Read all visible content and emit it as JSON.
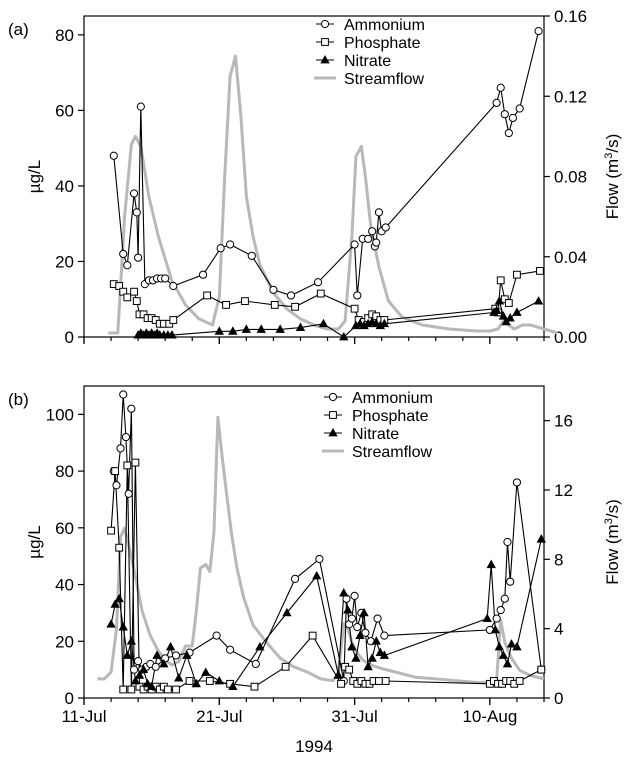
{
  "colors": {
    "ammonium": "#000000",
    "phosphate": "#000000",
    "nitrate": "#000000",
    "streamflow": "#b8b8b8"
  },
  "shared_x": {
    "ticks": [
      {
        "day": 11,
        "label": "11-Jul"
      },
      {
        "day": 21,
        "label": "21-Jul"
      },
      {
        "day": 31,
        "label": "31-Jul"
      },
      {
        "day": 41,
        "label": "10-Aug"
      }
    ],
    "xlabel": "1994",
    "xlim_note": "day-of-July axis"
  },
  "chart_data": [
    {
      "type": "line",
      "panel_label": "(a)",
      "xlim": [
        11,
        45
      ],
      "ylim": [
        0,
        85
      ],
      "yticks": [
        0,
        20,
        40,
        60,
        80
      ],
      "ylabel": "µg/L",
      "y2lim": [
        0,
        0.16
      ],
      "y2ticks": [
        "0.00",
        "0.04",
        "0.08",
        "0.12",
        "0.16"
      ],
      "y2label_base": "Flow (m",
      "y2label_sup": "3",
      "y2label_end": "/s)",
      "legend": [
        "Ammonium",
        "Phosphate",
        "Nitrate",
        "Streamflow"
      ],
      "series": [
        {
          "name": "Ammonium",
          "marker": "circle",
          "x": [
            13.2,
            13.9,
            14.2,
            14.7,
            14.9,
            15.0,
            15.2,
            15.5,
            15.8,
            16.1,
            16.4,
            16.7,
            17.0,
            17.6,
            19.8,
            21.1,
            21.8,
            23.4,
            25.0,
            26.3,
            28.3,
            31.0,
            31.2,
            31.6,
            32.0,
            32.3,
            32.5,
            32.6,
            32.8,
            33.0,
            33.3,
            41.5,
            41.8,
            42.1,
            42.4,
            42.7,
            43.2,
            44.6
          ],
          "y": [
            48,
            22,
            19,
            38,
            33,
            21,
            61,
            14,
            15,
            15,
            15.5,
            15.5,
            15.5,
            13.5,
            16.5,
            23.5,
            24.5,
            21.5,
            12.5,
            11,
            14.5,
            24.5,
            11,
            26,
            26,
            28,
            24,
            25,
            33,
            28,
            29,
            62,
            66,
            59,
            54,
            58,
            60.5,
            81
          ]
        },
        {
          "name": "Phosphate",
          "marker": "square",
          "x": [
            13.2,
            13.6,
            13.9,
            14.2,
            14.7,
            14.9,
            15.1,
            15.4,
            15.7,
            16.0,
            16.3,
            16.6,
            16.9,
            17.3,
            17.6,
            20.1,
            21.5,
            22.9,
            25.1,
            26.6,
            28.5,
            31.0,
            31.3,
            31.7,
            32.0,
            32.3,
            32.6,
            32.9,
            33.2,
            41.4,
            41.6,
            41.8,
            42.1,
            42.4,
            43.0,
            44.7
          ],
          "y": [
            14,
            13.5,
            12,
            10.5,
            12,
            9.5,
            6,
            6,
            5,
            5,
            4.5,
            3.5,
            3.5,
            3.5,
            4.5,
            11,
            8.5,
            9.5,
            8.5,
            8,
            11.5,
            7.5,
            4.5,
            4,
            5,
            6,
            5.5,
            4.5,
            4.5,
            7.5,
            6.5,
            15,
            10,
            9,
            16.5,
            17.5
          ]
        },
        {
          "name": "Nitrate",
          "marker": "triangle",
          "x": [
            15.0,
            15.2,
            15.4,
            15.6,
            15.8,
            16.0,
            16.2,
            16.4,
            16.6,
            16.9,
            17.2,
            17.5,
            21.0,
            22.0,
            23.0,
            24.1,
            25.5,
            27.0,
            28.7,
            30.2,
            31.1,
            31.4,
            31.7,
            32.0,
            32.3,
            32.6,
            32.9,
            33.2,
            41.3,
            41.5,
            41.7,
            42.0,
            42.2,
            42.5,
            43.0,
            44.6
          ],
          "y": [
            0.5,
            1,
            0.5,
            1,
            0.5,
            1,
            0.5,
            1,
            0.5,
            0.5,
            0.5,
            0.5,
            1.5,
            1.5,
            2,
            2,
            2,
            2.5,
            3.5,
            0,
            3,
            3.5,
            3,
            3.5,
            4,
            3.5,
            3,
            3.5,
            6.5,
            7,
            9.5,
            5.5,
            4,
            5,
            6.5,
            9.5
          ]
        },
        {
          "name": "Streamflow",
          "marker": "none",
          "axis": "y2",
          "x": [
            12.8,
            13.5,
            14.0,
            14.5,
            14.8,
            15.2,
            15.8,
            16.5,
            17.5,
            18.5,
            19.5,
            20.5,
            21.0,
            21.4,
            21.8,
            22.2,
            22.6,
            23.0,
            23.5,
            24.0,
            25.0,
            26.0,
            27.0,
            28.0,
            29.0,
            29.8,
            30.3,
            30.8,
            31.1,
            31.5,
            31.8,
            32.2,
            32.8,
            33.5,
            34.5,
            36.0,
            38.0,
            40.0,
            41.0,
            41.6,
            42.0,
            42.4,
            42.8,
            43.4,
            44.0,
            45.0,
            46.0
          ],
          "y": [
            0.002,
            0.002,
            0.06,
            0.096,
            0.1,
            0.095,
            0.07,
            0.05,
            0.028,
            0.016,
            0.009,
            0.006,
            0.02,
            0.08,
            0.13,
            0.14,
            0.11,
            0.07,
            0.05,
            0.036,
            0.022,
            0.014,
            0.009,
            0.006,
            0.004,
            0.004,
            0.008,
            0.05,
            0.09,
            0.095,
            0.08,
            0.055,
            0.035,
            0.018,
            0.01,
            0.006,
            0.004,
            0.003,
            0.003,
            0.004,
            0.008,
            0.006,
            0.004,
            0.006,
            0.006,
            0.004,
            0.002
          ]
        }
      ]
    },
    {
      "type": "line",
      "panel_label": "(b)",
      "xlim": [
        11,
        45
      ],
      "ylim": [
        0,
        110
      ],
      "yticks": [
        0,
        20,
        40,
        60,
        80,
        100
      ],
      "ylabel": "µg/L",
      "y2lim": [
        0,
        18
      ],
      "y2ticks": [
        "0",
        "4",
        "8",
        "12",
        "16"
      ],
      "y2label_base": "Flow (m",
      "y2label_sup": "3",
      "y2label_end": "/s)",
      "legend": [
        "Ammonium",
        "Phosphate",
        "Nitrate",
        "Streamflow"
      ],
      "series": [
        {
          "name": "Ammonium",
          "marker": "circle",
          "x": [
            13.2,
            13.4,
            13.7,
            13.9,
            14.1,
            14.3,
            14.5,
            14.7,
            15.0,
            15.3,
            15.6,
            15.9,
            16.3,
            17.0,
            17.8,
            18.8,
            20.8,
            21.8,
            23.7,
            26.6,
            28.4,
            30.2,
            30.4,
            30.6,
            30.8,
            31.0,
            31.2,
            31.5,
            31.8,
            32.2,
            32.7,
            33.2,
            41.0,
            41.5,
            41.8,
            42.1,
            42.3,
            42.5,
            43.0,
            44.8
          ],
          "y": [
            80,
            75,
            88,
            107,
            92,
            72,
            102,
            10,
            13,
            10,
            11,
            12,
            11,
            14,
            15,
            16,
            22,
            17,
            12,
            42,
            49,
            6,
            35,
            26,
            28,
            36,
            25,
            30,
            23,
            20,
            28,
            22,
            24,
            28,
            31,
            35,
            55,
            41,
            76,
            10
          ]
        },
        {
          "name": "Phosphate",
          "marker": "square",
          "x": [
            13.0,
            13.3,
            13.6,
            13.9,
            14.2,
            14.5,
            14.8,
            15.1,
            15.4,
            15.7,
            16.0,
            16.3,
            16.6,
            16.9,
            17.2,
            17.8,
            18.8,
            20.3,
            21.8,
            23.6,
            25.9,
            27.9,
            30.0,
            30.3,
            30.6,
            30.9,
            31.2,
            31.5,
            31.8,
            32.1,
            32.4,
            32.8,
            33.3,
            41.0,
            41.3,
            41.6,
            41.9,
            42.2,
            42.5,
            42.8,
            43.2,
            44.8
          ],
          "y": [
            59,
            80,
            53,
            3,
            82,
            3,
            83,
            4,
            3,
            4,
            3,
            4,
            3,
            4,
            3,
            3,
            6,
            6,
            5,
            4,
            11,
            22,
            5,
            11,
            10,
            6,
            5,
            6,
            5,
            5,
            6,
            6,
            6,
            5,
            6,
            5,
            5,
            6,
            6,
            5,
            6,
            10
          ]
        },
        {
          "name": "Nitrate",
          "marker": "triangle",
          "x": [
            13.0,
            13.3,
            13.6,
            13.9,
            14.2,
            14.5,
            14.8,
            15.1,
            15.4,
            15.7,
            16.0,
            16.4,
            16.9,
            17.4,
            18.0,
            18.6,
            19.3,
            20.0,
            21.0,
            22.0,
            24.0,
            26.0,
            28.2,
            29.8,
            30.2,
            30.5,
            30.8,
            31.1,
            31.4,
            31.7,
            32.0,
            32.3,
            32.6,
            32.9,
            33.2,
            40.8,
            41.1,
            41.4,
            41.7,
            42.0,
            42.3,
            42.6,
            43.0,
            44.8
          ],
          "y": [
            26,
            33,
            35,
            25,
            15,
            20,
            6,
            8,
            10,
            5,
            4,
            15,
            12,
            18,
            7,
            15,
            5,
            9,
            6,
            4,
            18,
            30,
            43,
            8,
            37,
            31,
            18,
            14,
            22,
            30,
            11,
            14,
            20,
            16,
            15,
            28,
            47,
            24,
            18,
            15,
            12,
            19,
            18,
            56
          ]
        },
        {
          "name": "Streamflow",
          "marker": "none",
          "axis": "y2",
          "x": [
            12.0,
            12.5,
            13.0,
            13.4,
            13.7,
            14.0,
            14.4,
            14.8,
            15.3,
            15.9,
            16.5,
            17.0,
            17.5,
            18.0,
            18.5,
            19.0,
            19.3,
            19.6,
            20.0,
            20.3,
            20.6,
            20.9,
            21.2,
            21.5,
            21.9,
            22.3,
            22.8,
            23.5,
            24.5,
            25.5,
            26.5,
            27.5,
            28.5,
            29.4,
            29.8,
            30.2,
            30.5,
            30.8,
            31.2,
            31.6,
            32.2,
            33.0,
            34.0,
            35.5,
            37.0,
            38.5,
            40.0,
            41.0,
            41.5,
            41.8,
            42.1,
            42.6,
            43.2,
            44.0,
            45.0
          ],
          "y": [
            1.1,
            1.1,
            1.5,
            4.0,
            9.3,
            9.8,
            8.5,
            7.0,
            5.0,
            3.6,
            2.7,
            2.2,
            1.9,
            2.1,
            3.0,
            3.0,
            5.0,
            7.5,
            7.7,
            7.3,
            9.5,
            16.2,
            14.0,
            12.0,
            9.5,
            7.5,
            5.8,
            4.2,
            3.2,
            2.3,
            1.8,
            1.5,
            1.1,
            1.0,
            1.5,
            4.3,
            4.0,
            3.2,
            2.6,
            2.2,
            1.9,
            1.7,
            1.5,
            1.2,
            1.1,
            1.0,
            0.9,
            0.9,
            1.0,
            4.5,
            3.2,
            2.3,
            1.6,
            1.3,
            1.1
          ]
        }
      ]
    }
  ]
}
